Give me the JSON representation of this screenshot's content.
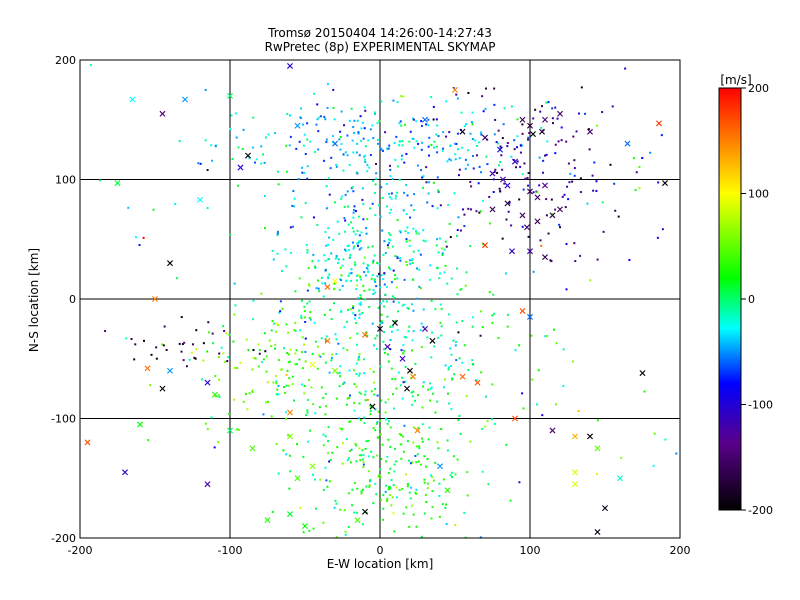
{
  "chart_data": {
    "type": "scatter",
    "title": "Tromsø 20150404 14:26:00-14:27:43",
    "subtitle": "RwPretec (8p) EXPERIMENTAL SKYMAP",
    "xlabel": "E-W location [km]",
    "ylabel": "N-S location [km]",
    "xlim": [
      -200,
      200
    ],
    "ylim": [
      -200,
      200
    ],
    "x_ticks": [
      "-200",
      "-100",
      "0",
      "100",
      "200"
    ],
    "y_ticks": [
      "-200",
      "-100",
      "0",
      "100",
      "200"
    ],
    "grid": true,
    "colorbar": {
      "label": "[m/s]",
      "range": [
        -200,
        200
      ],
      "ticks": [
        "200",
        "100",
        "0",
        "-100",
        "-200"
      ],
      "colors": [
        "#000000",
        "#5a008c",
        "#0000ff",
        "#00ffff",
        "#00ff00",
        "#ffff00",
        "#ff0000"
      ]
    },
    "series": [
      {
        "marker": "x",
        "points": [
          {
            "x": -145,
            "y": 155,
            "v": -150
          },
          {
            "x": -130,
            "y": 167,
            "v": -50
          },
          {
            "x": -100,
            "y": 170,
            "v": 0
          },
          {
            "x": -165,
            "y": 167,
            "v": -30
          },
          {
            "x": -88,
            "y": 120,
            "v": -200
          },
          {
            "x": -93,
            "y": 110,
            "v": -100
          },
          {
            "x": -60,
            "y": 195,
            "v": -100
          },
          {
            "x": -55,
            "y": 145,
            "v": -50
          },
          {
            "x": -30,
            "y": 130,
            "v": -60
          },
          {
            "x": 30,
            "y": 150,
            "v": -60
          },
          {
            "x": 50,
            "y": 175,
            "v": 150
          },
          {
            "x": 55,
            "y": 140,
            "v": -190
          },
          {
            "x": 70,
            "y": 135,
            "v": -160
          },
          {
            "x": 80,
            "y": 125,
            "v": -90
          },
          {
            "x": 95,
            "y": 150,
            "v": -160
          },
          {
            "x": 100,
            "y": 145,
            "v": -170
          },
          {
            "x": 102,
            "y": 138,
            "v": -200
          },
          {
            "x": 108,
            "y": 140,
            "v": -180
          },
          {
            "x": 110,
            "y": 150,
            "v": -150
          },
          {
            "x": 120,
            "y": 155,
            "v": -150
          },
          {
            "x": 140,
            "y": 140,
            "v": -150
          },
          {
            "x": 165,
            "y": 130,
            "v": -60
          },
          {
            "x": 186,
            "y": 147,
            "v": 180
          },
          {
            "x": 190,
            "y": 97,
            "v": -200
          },
          {
            "x": 75,
            "y": 105,
            "v": -120
          },
          {
            "x": 82,
            "y": 100,
            "v": -120
          },
          {
            "x": 85,
            "y": 95,
            "v": -100
          },
          {
            "x": 90,
            "y": 115,
            "v": -110
          },
          {
            "x": 100,
            "y": 90,
            "v": -160
          },
          {
            "x": 105,
            "y": 85,
            "v": -150
          },
          {
            "x": 110,
            "y": 95,
            "v": -130
          },
          {
            "x": 75,
            "y": 75,
            "v": -160
          },
          {
            "x": 85,
            "y": 80,
            "v": -170
          },
          {
            "x": 95,
            "y": 70,
            "v": -160
          },
          {
            "x": 98,
            "y": 60,
            "v": -150
          },
          {
            "x": 105,
            "y": 65,
            "v": -160
          },
          {
            "x": 115,
            "y": 70,
            "v": -170
          },
          {
            "x": 120,
            "y": 75,
            "v": -160
          },
          {
            "x": 70,
            "y": 45,
            "v": 180
          },
          {
            "x": 88,
            "y": 40,
            "v": -110
          },
          {
            "x": 100,
            "y": 40,
            "v": -120
          },
          {
            "x": 110,
            "y": 35,
            "v": -160
          },
          {
            "x": -120,
            "y": 83,
            "v": -30
          },
          {
            "x": -175,
            "y": 97,
            "v": 10
          },
          {
            "x": -150,
            "y": 0,
            "v": 150
          },
          {
            "x": -140,
            "y": 30,
            "v": -200
          },
          {
            "x": -35,
            "y": 10,
            "v": 160
          },
          {
            "x": -30,
            "y": 15,
            "v": 100
          },
          {
            "x": -35,
            "y": -35,
            "v": 150
          },
          {
            "x": -10,
            "y": -30,
            "v": 160
          },
          {
            "x": 0,
            "y": -25,
            "v": -190
          },
          {
            "x": 10,
            "y": -20,
            "v": -200
          },
          {
            "x": 30,
            "y": -25,
            "v": -120
          },
          {
            "x": 35,
            "y": -35,
            "v": -200
          },
          {
            "x": 5,
            "y": -40,
            "v": -120
          },
          {
            "x": 15,
            "y": -50,
            "v": -110
          },
          {
            "x": 20,
            "y": -60,
            "v": -200
          },
          {
            "x": 22,
            "y": -65,
            "v": 150
          },
          {
            "x": 18,
            "y": -75,
            "v": -200
          },
          {
            "x": -30,
            "y": -60,
            "v": 60
          },
          {
            "x": -45,
            "y": -55,
            "v": 90
          },
          {
            "x": 55,
            "y": -65,
            "v": 160
          },
          {
            "x": 65,
            "y": -70,
            "v": 170
          },
          {
            "x": 95,
            "y": -10,
            "v": 170
          },
          {
            "x": 100,
            "y": -15,
            "v": -60
          },
          {
            "x": 175,
            "y": -62,
            "v": -200
          },
          {
            "x": -155,
            "y": -58,
            "v": 160
          },
          {
            "x": -145,
            "y": -75,
            "v": -200
          },
          {
            "x": -140,
            "y": -60,
            "v": -50
          },
          {
            "x": -115,
            "y": -70,
            "v": -100
          },
          {
            "x": -110,
            "y": -80,
            "v": 30
          },
          {
            "x": -170,
            "y": -145,
            "v": -110
          },
          {
            "x": -195,
            "y": -120,
            "v": 170
          },
          {
            "x": -160,
            "y": -105,
            "v": 20
          },
          {
            "x": -115,
            "y": -155,
            "v": -120
          },
          {
            "x": -100,
            "y": -110,
            "v": 0
          },
          {
            "x": -5,
            "y": -90,
            "v": -200
          },
          {
            "x": 25,
            "y": -110,
            "v": 150
          },
          {
            "x": 115,
            "y": -110,
            "v": -150
          },
          {
            "x": 130,
            "y": -115,
            "v": 130
          },
          {
            "x": 140,
            "y": -115,
            "v": -200
          },
          {
            "x": 145,
            "y": -125,
            "v": 50
          },
          {
            "x": 130,
            "y": -145,
            "v": 90
          },
          {
            "x": 130,
            "y": -155,
            "v": 90
          },
          {
            "x": 160,
            "y": -150,
            "v": -20
          },
          {
            "x": 150,
            "y": -175,
            "v": -190
          },
          {
            "x": 145,
            "y": -195,
            "v": -190
          },
          {
            "x": -10,
            "y": -178,
            "v": -200
          },
          {
            "x": -15,
            "y": -185,
            "v": 40
          },
          {
            "x": -50,
            "y": -190,
            "v": 20
          },
          {
            "x": -60,
            "y": -180,
            "v": 10
          },
          {
            "x": -75,
            "y": -185,
            "v": 30
          },
          {
            "x": -55,
            "y": -150,
            "v": 40
          },
          {
            "x": -45,
            "y": -140,
            "v": 60
          },
          {
            "x": -85,
            "y": -125,
            "v": 40
          },
          {
            "x": -60,
            "y": -115,
            "v": 60
          },
          {
            "x": -60,
            "y": -95,
            "v": 150
          },
          {
            "x": 45,
            "y": -160,
            "v": 30
          },
          {
            "x": 40,
            "y": -140,
            "v": -50
          },
          {
            "x": 90,
            "y": -100,
            "v": 170
          }
        ]
      },
      {
        "marker": "dot",
        "clusters": [
          {
            "cx": 0,
            "cy": 130,
            "sx": 55,
            "sy": 20,
            "v": -40,
            "sv": 25,
            "n": 260
          },
          {
            "cx": 90,
            "cy": 110,
            "sx": 40,
            "sy": 35,
            "v": -130,
            "sv": 40,
            "n": 160
          },
          {
            "cx": -10,
            "cy": 40,
            "sx": 30,
            "sy": 35,
            "v": -30,
            "sv": 25,
            "n": 280
          },
          {
            "cx": 0,
            "cy": -40,
            "sx": 45,
            "sy": 45,
            "v": 0,
            "sv": 30,
            "n": 320
          },
          {
            "cx": 5,
            "cy": -140,
            "sx": 30,
            "sy": 35,
            "v": 20,
            "sv": 25,
            "n": 260
          },
          {
            "cx": -70,
            "cy": -60,
            "sx": 25,
            "sy": 25,
            "v": 50,
            "sv": 20,
            "n": 90
          },
          {
            "cx": -130,
            "cy": -40,
            "sx": 30,
            "sy": 10,
            "v": -180,
            "sv": 20,
            "n": 30
          },
          {
            "cx": 0,
            "cy": 0,
            "sx": 140,
            "sy": 140,
            "v": -20,
            "sv": 70,
            "n": 160
          }
        ]
      }
    ]
  }
}
